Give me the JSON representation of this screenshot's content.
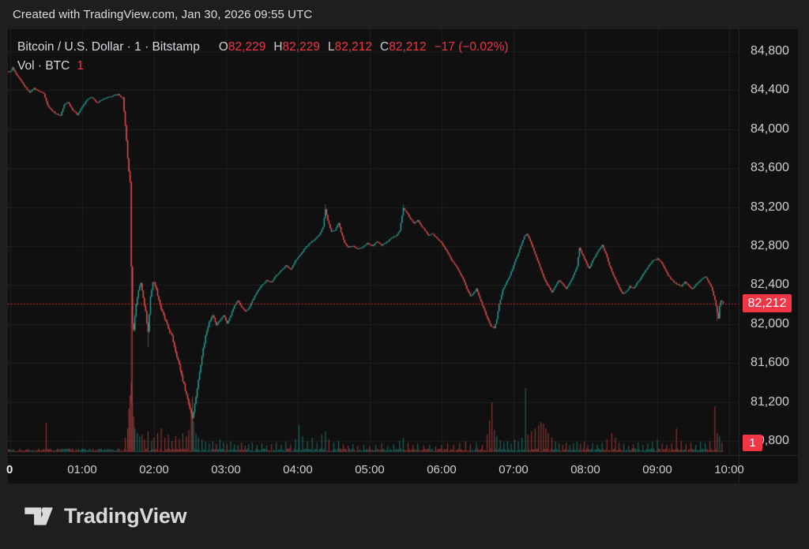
{
  "topbar": {
    "text": "Created with TradingView.com, Jan 30, 2026 09:55 UTC"
  },
  "legend": {
    "symbol": "Bitcoin / U.S. Dollar · 1 · Bitstamp",
    "o_label": "O",
    "o_value": "82,229",
    "h_label": "H",
    "h_value": "82,229",
    "l_label": "L",
    "l_value": "82,212",
    "c_label": "C",
    "c_value": "82,212",
    "change": "−17 (−0.02%)",
    "volume_label": "Vol · BTC",
    "volume_value": "1"
  },
  "price_axis": {
    "last_price_badge": "82,212",
    "volume_badge": "1"
  },
  "footer": {
    "brand": "TradingView"
  },
  "chart_data": {
    "type": "candlestick",
    "title": "Bitcoin / U.S. Dollar, 1 minute, Bitstamp",
    "current_bar": {
      "open": 82229,
      "high": 82229,
      "low": 82212,
      "close": 82212,
      "change": -17,
      "change_pct": -0.02
    },
    "price_line": {
      "value": 82212,
      "color": "#f23645",
      "style": "dotted"
    },
    "ylim": [
      80700,
      85030
    ],
    "xlim_minutes": [
      -4,
      608
    ],
    "grid": true,
    "y_ticks": [
      {
        "label": "84,800",
        "value": 84800
      },
      {
        "label": "84,400",
        "value": 84400
      },
      {
        "label": "84,000",
        "value": 84000
      },
      {
        "label": "83,600",
        "value": 83600
      },
      {
        "label": "83,200",
        "value": 83200
      },
      {
        "label": "82,800",
        "value": 82800
      },
      {
        "label": "82,400",
        "value": 82400
      },
      {
        "label": "82,000",
        "value": 82000
      },
      {
        "label": "81,600",
        "value": 81600
      },
      {
        "label": "81,200",
        "value": 81200
      },
      {
        "label": "80,800",
        "value": 80800
      }
    ],
    "x_ticks": [
      {
        "label": "0",
        "minute": 0,
        "bold": true
      },
      {
        "label": "01:00",
        "minute": 60
      },
      {
        "label": "02:00",
        "minute": 120
      },
      {
        "label": "03:00",
        "minute": 180
      },
      {
        "label": "04:00",
        "minute": 240
      },
      {
        "label": "05:00",
        "minute": 300
      },
      {
        "label": "06:00",
        "minute": 360
      },
      {
        "label": "07:00",
        "minute": 420
      },
      {
        "label": "08:00",
        "minute": 480
      },
      {
        "label": "09:00",
        "minute": 540
      },
      {
        "label": "10:00",
        "minute": 600
      }
    ],
    "price_path_anchors": [
      [
        0,
        84590
      ],
      [
        2,
        84630
      ],
      [
        5,
        84560
      ],
      [
        8,
        84510
      ],
      [
        12,
        84440
      ],
      [
        16,
        84380
      ],
      [
        20,
        84420
      ],
      [
        24,
        84390
      ],
      [
        28,
        84370
      ],
      [
        31,
        84250
      ],
      [
        34,
        84200
      ],
      [
        38,
        84160
      ],
      [
        42,
        84140
      ],
      [
        45,
        84250
      ],
      [
        48,
        84280
      ],
      [
        52,
        84200
      ],
      [
        56,
        84150
      ],
      [
        60,
        84230
      ],
      [
        64,
        84300
      ],
      [
        68,
        84330
      ],
      [
        72,
        84270
      ],
      [
        76,
        84300
      ],
      [
        80,
        84320
      ],
      [
        85,
        84340
      ],
      [
        90,
        84360
      ],
      [
        94,
        84310
      ],
      [
        96,
        84050
      ],
      [
        98,
        83700
      ],
      [
        100,
        83450
      ],
      [
        101,
        82600
      ],
      [
        102,
        82000
      ],
      [
        103,
        81950
      ],
      [
        105,
        82200
      ],
      [
        107,
        82350
      ],
      [
        109,
        82420
      ],
      [
        111,
        82280
      ],
      [
        113,
        82120
      ],
      [
        115,
        81920
      ],
      [
        117,
        82280
      ],
      [
        119,
        82430
      ],
      [
        121,
        82400
      ],
      [
        123,
        82300
      ],
      [
        126,
        82150
      ],
      [
        129,
        82050
      ],
      [
        132,
        81950
      ],
      [
        135,
        81870
      ],
      [
        138,
        81720
      ],
      [
        141,
        81580
      ],
      [
        144,
        81420
      ],
      [
        147,
        81280
      ],
      [
        150,
        81130
      ],
      [
        152,
        81040
      ],
      [
        154,
        81180
      ],
      [
        157,
        81420
      ],
      [
        160,
        81680
      ],
      [
        163,
        81880
      ],
      [
        166,
        82030
      ],
      [
        169,
        82090
      ],
      [
        172,
        81990
      ],
      [
        175,
        82040
      ],
      [
        178,
        82090
      ],
      [
        181,
        82010
      ],
      [
        184,
        82090
      ],
      [
        187,
        82190
      ],
      [
        190,
        82240
      ],
      [
        193,
        82170
      ],
      [
        196,
        82130
      ],
      [
        199,
        82160
      ],
      [
        202,
        82240
      ],
      [
        206,
        82330
      ],
      [
        210,
        82400
      ],
      [
        214,
        82450
      ],
      [
        218,
        82430
      ],
      [
        222,
        82500
      ],
      [
        226,
        82550
      ],
      [
        230,
        82600
      ],
      [
        234,
        82560
      ],
      [
        238,
        82650
      ],
      [
        242,
        82710
      ],
      [
        246,
        82780
      ],
      [
        250,
        82830
      ],
      [
        254,
        82870
      ],
      [
        258,
        82920
      ],
      [
        261,
        83000
      ],
      [
        263,
        83180
      ],
      [
        265,
        83060
      ],
      [
        268,
        82950
      ],
      [
        271,
        82960
      ],
      [
        274,
        83040
      ],
      [
        276,
        82940
      ],
      [
        279,
        82830
      ],
      [
        282,
        82790
      ],
      [
        286,
        82800
      ],
      [
        290,
        82770
      ],
      [
        294,
        82790
      ],
      [
        298,
        82830
      ],
      [
        302,
        82800
      ],
      [
        306,
        82850
      ],
      [
        310,
        82810
      ],
      [
        314,
        82840
      ],
      [
        318,
        82880
      ],
      [
        322,
        82910
      ],
      [
        325,
        82960
      ],
      [
        328,
        83190
      ],
      [
        331,
        83140
      ],
      [
        334,
        83080
      ],
      [
        337,
        83030
      ],
      [
        340,
        83070
      ],
      [
        343,
        83010
      ],
      [
        346,
        82960
      ],
      [
        349,
        82910
      ],
      [
        352,
        82930
      ],
      [
        356,
        82880
      ],
      [
        360,
        82830
      ],
      [
        364,
        82750
      ],
      [
        368,
        82660
      ],
      [
        372,
        82590
      ],
      [
        375,
        82530
      ],
      [
        378,
        82460
      ],
      [
        381,
        82360
      ],
      [
        384,
        82290
      ],
      [
        386,
        82310
      ],
      [
        389,
        82360
      ],
      [
        392,
        82260
      ],
      [
        395,
        82160
      ],
      [
        398,
        82060
      ],
      [
        401,
        81980
      ],
      [
        404,
        81960
      ],
      [
        406,
        82050
      ],
      [
        408,
        82200
      ],
      [
        411,
        82350
      ],
      [
        414,
        82430
      ],
      [
        417,
        82500
      ],
      [
        420,
        82600
      ],
      [
        423,
        82700
      ],
      [
        426,
        82800
      ],
      [
        429,
        82900
      ],
      [
        431,
        82930
      ],
      [
        434,
        82850
      ],
      [
        437,
        82750
      ],
      [
        440,
        82650
      ],
      [
        443,
        82550
      ],
      [
        446,
        82450
      ],
      [
        449,
        82390
      ],
      [
        452,
        82330
      ],
      [
        455,
        82390
      ],
      [
        458,
        82450
      ],
      [
        461,
        82410
      ],
      [
        464,
        82360
      ],
      [
        467,
        82430
      ],
      [
        470,
        82500
      ],
      [
        473,
        82590
      ],
      [
        475,
        82780
      ],
      [
        478,
        82700
      ],
      [
        481,
        82620
      ],
      [
        483,
        82570
      ],
      [
        486,
        82650
      ],
      [
        490,
        82740
      ],
      [
        494,
        82810
      ],
      [
        497,
        82720
      ],
      [
        500,
        82600
      ],
      [
        504,
        82480
      ],
      [
        508,
        82380
      ],
      [
        511,
        82310
      ],
      [
        514,
        82330
      ],
      [
        517,
        82390
      ],
      [
        520,
        82360
      ],
      [
        523,
        82420
      ],
      [
        526,
        82470
      ],
      [
        529,
        82530
      ],
      [
        533,
        82600
      ],
      [
        536,
        82650
      ],
      [
        540,
        82670
      ],
      [
        543,
        82640
      ],
      [
        546,
        82570
      ],
      [
        549,
        82500
      ],
      [
        552,
        82450
      ],
      [
        556,
        82410
      ],
      [
        560,
        82390
      ],
      [
        563,
        82430
      ],
      [
        566,
        82400
      ],
      [
        569,
        82360
      ],
      [
        572,
        82400
      ],
      [
        575,
        82440
      ],
      [
        578,
        82470
      ],
      [
        580,
        82490
      ],
      [
        583,
        82430
      ],
      [
        585,
        82380
      ],
      [
        588,
        82250
      ],
      [
        590,
        82120
      ],
      [
        591,
        82060
      ],
      [
        592,
        82180
      ],
      [
        593,
        82240
      ],
      [
        594,
        82230
      ],
      [
        595,
        82212
      ]
    ],
    "wick_lows": [
      [
        101,
        81200
      ],
      [
        102,
        81170
      ],
      [
        115,
        81760
      ],
      [
        152,
        80990
      ],
      [
        590,
        82030
      ]
    ],
    "wick_highs": [
      [
        2,
        84645
      ],
      [
        263,
        83230
      ],
      [
        328,
        83230
      ]
    ],
    "volume_spikes": [
      [
        30,
        37
      ],
      [
        96,
        18
      ],
      [
        98,
        30
      ],
      [
        99,
        55
      ],
      [
        100,
        72
      ],
      [
        101,
        88
      ],
      [
        102,
        62
      ],
      [
        103,
        45
      ],
      [
        104,
        30
      ],
      [
        106,
        24
      ],
      [
        108,
        20
      ],
      [
        110,
        22
      ],
      [
        112,
        16
      ],
      [
        115,
        26
      ],
      [
        118,
        14
      ],
      [
        120,
        18
      ],
      [
        123,
        24
      ],
      [
        126,
        30
      ],
      [
        129,
        18
      ],
      [
        132,
        22
      ],
      [
        135,
        14
      ],
      [
        138,
        20
      ],
      [
        141,
        16
      ],
      [
        144,
        24
      ],
      [
        147,
        20
      ],
      [
        149,
        28
      ],
      [
        151,
        48
      ],
      [
        152,
        70
      ],
      [
        153,
        38
      ],
      [
        155,
        24
      ],
      [
        157,
        18
      ],
      [
        160,
        16
      ],
      [
        163,
        13
      ],
      [
        166,
        11
      ],
      [
        169,
        14
      ],
      [
        172,
        10
      ],
      [
        175,
        16
      ],
      [
        178,
        12
      ],
      [
        181,
        10
      ],
      [
        184,
        13
      ],
      [
        187,
        10
      ],
      [
        190,
        9
      ],
      [
        193,
        12
      ],
      [
        196,
        8
      ],
      [
        199,
        10
      ],
      [
        202,
        12
      ],
      [
        206,
        9
      ],
      [
        210,
        11
      ],
      [
        214,
        8
      ],
      [
        218,
        10
      ],
      [
        222,
        12
      ],
      [
        226,
        9
      ],
      [
        230,
        13
      ],
      [
        234,
        10
      ],
      [
        238,
        16
      ],
      [
        241,
        34
      ],
      [
        244,
        20
      ],
      [
        248,
        14
      ],
      [
        252,
        18
      ],
      [
        256,
        12
      ],
      [
        260,
        22
      ],
      [
        263,
        26
      ],
      [
        266,
        16
      ],
      [
        270,
        12
      ],
      [
        274,
        14
      ],
      [
        278,
        10
      ],
      [
        282,
        8
      ],
      [
        286,
        10
      ],
      [
        290,
        8
      ],
      [
        295,
        9
      ],
      [
        300,
        7
      ],
      [
        305,
        9
      ],
      [
        310,
        11
      ],
      [
        315,
        8
      ],
      [
        320,
        10
      ],
      [
        325,
        14
      ],
      [
        328,
        18
      ],
      [
        332,
        12
      ],
      [
        336,
        9
      ],
      [
        340,
        11
      ],
      [
        345,
        8
      ],
      [
        350,
        9
      ],
      [
        355,
        7
      ],
      [
        360,
        9
      ],
      [
        365,
        11
      ],
      [
        370,
        9
      ],
      [
        375,
        12
      ],
      [
        380,
        14
      ],
      [
        384,
        10
      ],
      [
        389,
        12
      ],
      [
        394,
        9
      ],
      [
        398,
        22
      ],
      [
        400,
        40
      ],
      [
        402,
        63
      ],
      [
        404,
        28
      ],
      [
        406,
        20
      ],
      [
        409,
        15
      ],
      [
        412,
        12
      ],
      [
        415,
        14
      ],
      [
        418,
        11
      ],
      [
        421,
        16
      ],
      [
        424,
        13
      ],
      [
        427,
        18
      ],
      [
        430,
        81
      ],
      [
        432,
        22
      ],
      [
        435,
        26
      ],
      [
        438,
        30
      ],
      [
        441,
        34
      ],
      [
        443,
        38
      ],
      [
        445,
        36
      ],
      [
        447,
        30
      ],
      [
        449,
        24
      ],
      [
        452,
        18
      ],
      [
        455,
        13
      ],
      [
        458,
        11
      ],
      [
        461,
        9
      ],
      [
        464,
        12
      ],
      [
        467,
        9
      ],
      [
        470,
        11
      ],
      [
        473,
        13
      ],
      [
        476,
        10
      ],
      [
        479,
        13
      ],
      [
        482,
        9
      ],
      [
        486,
        11
      ],
      [
        490,
        9
      ],
      [
        494,
        12
      ],
      [
        498,
        16
      ],
      [
        502,
        24
      ],
      [
        505,
        18
      ],
      [
        508,
        12
      ],
      [
        512,
        10
      ],
      [
        516,
        8
      ],
      [
        520,
        10
      ],
      [
        524,
        12
      ],
      [
        528,
        9
      ],
      [
        532,
        11
      ],
      [
        536,
        13
      ],
      [
        540,
        15
      ],
      [
        544,
        11
      ],
      [
        548,
        9
      ],
      [
        552,
        11
      ],
      [
        556,
        30
      ],
      [
        560,
        14
      ],
      [
        564,
        10
      ],
      [
        568,
        12
      ],
      [
        572,
        9
      ],
      [
        576,
        13
      ],
      [
        580,
        11
      ],
      [
        584,
        14
      ],
      [
        588,
        58
      ],
      [
        590,
        24
      ],
      [
        592,
        20
      ],
      [
        594,
        12
      ]
    ],
    "colors": {
      "up": "#26a69a",
      "down": "#ef5350",
      "volume_up": "rgba(38,166,154,0.55)",
      "volume_down": "rgba(239,83,80,0.55)",
      "grid": "rgba(255,255,255,0.065)",
      "separator": "rgba(255,255,255,0.10)",
      "badge": "#f23645",
      "axis_text": "#cfcfcf",
      "panel_bg": "#101010",
      "outer_bg": "#1e1e1e"
    }
  }
}
